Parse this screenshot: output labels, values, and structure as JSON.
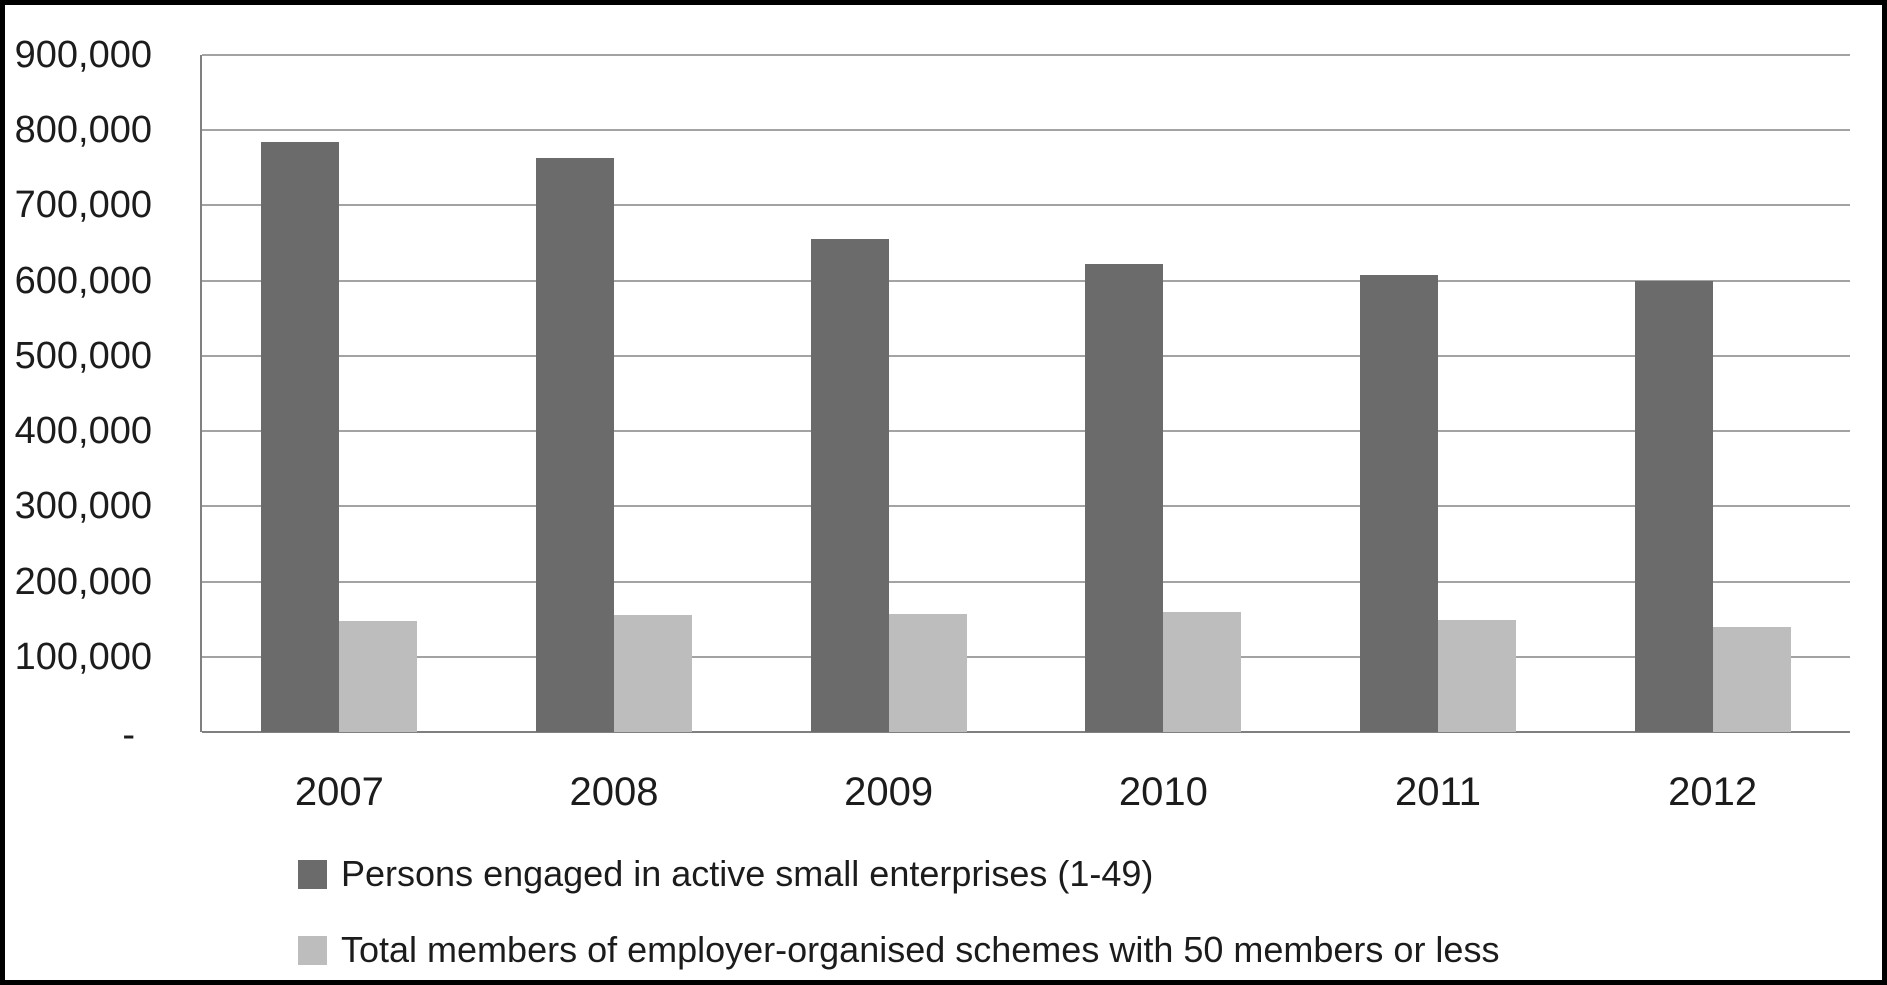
{
  "chart_data": {
    "type": "bar",
    "title": "",
    "xlabel": "",
    "ylabel": "",
    "categories": [
      "2007",
      "2008",
      "2009",
      "2010",
      "2011",
      "2012"
    ],
    "series": [
      {
        "name": "Persons engaged in active small enterprises (1-49)",
        "color": "#6b6b6b",
        "values": [
          785000,
          763000,
          655000,
          622000,
          607000,
          600000
        ]
      },
      {
        "name": "Total members of employer-organised schemes with 50 members or less",
        "color": "#bdbdbd",
        "values": [
          148000,
          156000,
          157000,
          160000,
          149000,
          140000
        ]
      }
    ],
    "ylim": [
      0,
      900000
    ],
    "y_tick_step": 100000,
    "y_tick_labels": [
      "-",
      "100,000",
      "200,000",
      "300,000",
      "400,000",
      "500,000",
      "600,000",
      "700,000",
      "800,000",
      "900,000"
    ],
    "zero_tick_label": "-",
    "grid": true,
    "legend_position": "bottom-left"
  },
  "colors": {
    "background": "#ffffff",
    "frame_border": "#000000",
    "gridline": "#a3a3a3",
    "axis_line": "#808080",
    "text": "#1c1c1c",
    "series_dark": "#6b6b6b",
    "series_light": "#bdbdbd"
  }
}
